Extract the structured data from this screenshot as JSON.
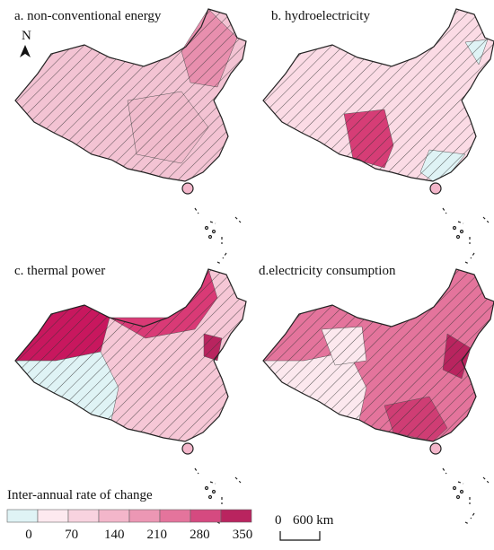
{
  "panels": [
    {
      "label": "a. non-conventional energy"
    },
    {
      "label": "b. hydroelectricity"
    },
    {
      "label": "c. thermal power"
    },
    {
      "label": "d.electricity consumption"
    }
  ],
  "north_arrow": "N",
  "legend": {
    "title": "Inter-annual rate of change",
    "colors": [
      "#dff3f5",
      "#fde9ef",
      "#f8d3df",
      "#f3b6ca",
      "#ec97b4",
      "#e4749c",
      "#d54a80",
      "#b9245f"
    ],
    "ticks": [
      0,
      70,
      140,
      210,
      280,
      350
    ]
  },
  "scale_bar": {
    "start": "0",
    "end": "600 km"
  }
}
